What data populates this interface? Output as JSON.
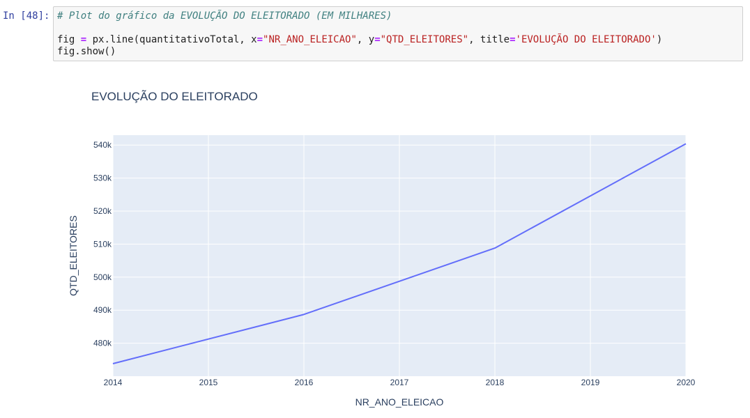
{
  "cell": {
    "prompt": "In [48]:",
    "code": {
      "comment": "# Plot do gráfico da EVOLUÇÃO DO ELEITORADO (EM MILHARES)",
      "line2_fig": "fig ",
      "line2_eq": "=",
      "line2_call": " px.line(quantitativoTotal, x",
      "line2_eq2": "=",
      "line2_str_x": "\"NR_ANO_ELEICAO\"",
      "line2_mid": ", y",
      "line2_eq3": "=",
      "line2_str_y": "\"QTD_ELEITORES\"",
      "line2_title": ", title",
      "line2_eq4": "=",
      "line2_str_title": "'EVOLUÇÃO DO ELEITORADO'",
      "line2_end": ")",
      "line3": "fig.show()"
    }
  },
  "chart_data": {
    "type": "line",
    "title": "EVOLUÇÃO DO ELEITORADO",
    "xlabel": "NR_ANO_ELEICAO",
    "ylabel": "QTD_ELEITORES",
    "x": [
      2014,
      2016,
      2018,
      2020
    ],
    "series": [
      {
        "values": [
          473800,
          488700,
          508800,
          540400
        ]
      }
    ],
    "xlim": [
      2014,
      2020
    ],
    "ylim": [
      470000,
      543000
    ],
    "xticks": [
      2014,
      2015,
      2016,
      2017,
      2018,
      2019,
      2020
    ],
    "yticks": [
      480000,
      490000,
      500000,
      510000,
      520000,
      530000,
      540000
    ],
    "ytick_labels": [
      "480k",
      "490k",
      "500k",
      "510k",
      "520k",
      "530k",
      "540k"
    ],
    "grid": true,
    "colors": {
      "line": "#636efa",
      "plot_bg": "#e5ecf6",
      "grid": "#ffffff",
      "text": "#2a3f5f"
    }
  }
}
